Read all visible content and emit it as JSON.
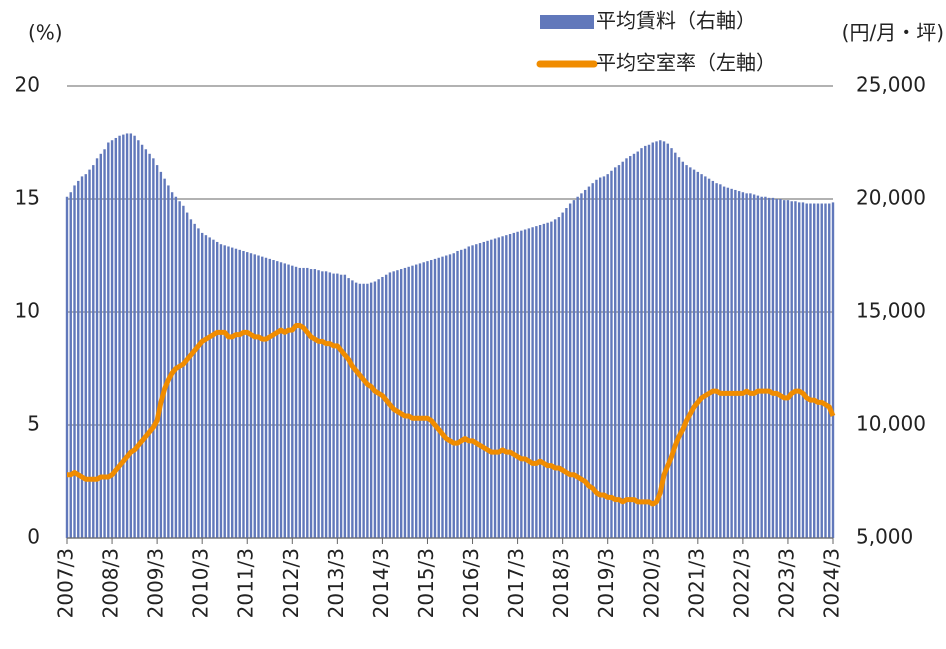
{
  "chart_data": {
    "type": "combo",
    "legend": "top",
    "y_unit_label": "(%)",
    "y2_unit_label": "(円/月・坪)",
    "categories": [
      "2007/3",
      null,
      null,
      null,
      null,
      null,
      null,
      null,
      null,
      null,
      null,
      null,
      "2008/3",
      null,
      null,
      null,
      null,
      null,
      null,
      null,
      null,
      null,
      null,
      null,
      "2009/3",
      null,
      null,
      null,
      null,
      null,
      null,
      null,
      null,
      null,
      null,
      null,
      "2010/3",
      null,
      null,
      null,
      null,
      null,
      null,
      null,
      null,
      null,
      null,
      null,
      "2011/3",
      null,
      null,
      null,
      null,
      null,
      null,
      null,
      null,
      null,
      null,
      null,
      "2012/3",
      null,
      null,
      null,
      null,
      null,
      null,
      null,
      null,
      null,
      null,
      null,
      "2013/3",
      null,
      null,
      null,
      null,
      null,
      null,
      null,
      null,
      null,
      null,
      null,
      "2014/3",
      null,
      null,
      null,
      null,
      null,
      null,
      null,
      null,
      null,
      null,
      null,
      "2015/3",
      null,
      null,
      null,
      null,
      null,
      null,
      null,
      null,
      null,
      null,
      null,
      "2016/3",
      null,
      null,
      null,
      null,
      null,
      null,
      null,
      null,
      null,
      null,
      null,
      "2017/3",
      null,
      null,
      null,
      null,
      null,
      null,
      null,
      null,
      null,
      null,
      null,
      "2018/3",
      null,
      null,
      null,
      null,
      null,
      null,
      null,
      null,
      null,
      null,
      null,
      "2019/3",
      null,
      null,
      null,
      null,
      null,
      null,
      null,
      null,
      null,
      null,
      null,
      "2020/3",
      null,
      null,
      null,
      null,
      null,
      null,
      null,
      null,
      null,
      null,
      null,
      "2021/3",
      null,
      null,
      null,
      null,
      null,
      null,
      null,
      null,
      null,
      null,
      null,
      "2022/3",
      null,
      null,
      null,
      null,
      null,
      null,
      null,
      null,
      null,
      null,
      null,
      "2023/3",
      null,
      null,
      null,
      null,
      null,
      null,
      null,
      null,
      null,
      null,
      null,
      "2024/3"
    ],
    "series": [
      {
        "name": "平均賃料（右軸）",
        "type": "bar",
        "axis": "y2",
        "color": "#6178bb",
        "values": [
          20100,
          20300,
          20600,
          20800,
          21000,
          21100,
          21300,
          21500,
          21800,
          22000,
          22200,
          22500,
          22600,
          22700,
          22800,
          22850,
          22900,
          22900,
          22800,
          22600,
          22400,
          22200,
          22000,
          21800,
          21500,
          21200,
          20900,
          20600,
          20300,
          20100,
          19900,
          19700,
          19400,
          19100,
          18900,
          18700,
          18500,
          18400,
          18300,
          18200,
          18100,
          18000,
          17950,
          17900,
          17850,
          17800,
          17750,
          17700,
          17650,
          17600,
          17550,
          17500,
          17450,
          17400,
          17350,
          17300,
          17250,
          17200,
          17150,
          17100,
          17050,
          17000,
          16950,
          16950,
          16950,
          16900,
          16900,
          16850,
          16800,
          16800,
          16750,
          16700,
          16700,
          16650,
          16650,
          16500,
          16400,
          16300,
          16250,
          16250,
          16250,
          16300,
          16350,
          16450,
          16550,
          16650,
          16750,
          16800,
          16850,
          16900,
          16950,
          17000,
          17050,
          17100,
          17150,
          17200,
          17250,
          17300,
          17350,
          17400,
          17450,
          17500,
          17550,
          17600,
          17700,
          17750,
          17800,
          17900,
          17950,
          18000,
          18050,
          18100,
          18150,
          18200,
          18250,
          18300,
          18350,
          18400,
          18450,
          18500,
          18550,
          18600,
          18650,
          18700,
          18750,
          18800,
          18850,
          18900,
          18950,
          19000,
          19100,
          19200,
          19400,
          19600,
          19800,
          19950,
          20100,
          20250,
          20400,
          20550,
          20700,
          20850,
          20950,
          21000,
          21100,
          21250,
          21400,
          21500,
          21650,
          21800,
          21900,
          22000,
          22100,
          22250,
          22350,
          22400,
          22500,
          22550,
          22600,
          22550,
          22450,
          22250,
          22050,
          21850,
          21650,
          21500,
          21400,
          21300,
          21200,
          21100,
          21000,
          20900,
          20800,
          20700,
          20650,
          20550,
          20500,
          20450,
          20400,
          20350,
          20300,
          20250,
          20250,
          20200,
          20150,
          20100,
          20100,
          20050,
          20050,
          20000,
          20000,
          19950,
          19950,
          19900,
          19900,
          19850,
          19850,
          19800,
          19800,
          19800,
          19800,
          19800,
          19800,
          19800,
          19850
        ]
      },
      {
        "name": "平均空室率（左軸）",
        "type": "line",
        "axis": "y",
        "color": "#f08c00",
        "values": [
          2.8,
          2.8,
          2.9,
          2.8,
          2.7,
          2.6,
          2.6,
          2.6,
          2.6,
          2.7,
          2.7,
          2.7,
          2.8,
          3.0,
          3.2,
          3.4,
          3.6,
          3.8,
          3.9,
          4.1,
          4.3,
          4.5,
          4.7,
          4.9,
          5.2,
          6.0,
          6.6,
          7.0,
          7.3,
          7.5,
          7.6,
          7.7,
          7.9,
          8.1,
          8.3,
          8.5,
          8.7,
          8.8,
          8.9,
          9.0,
          9.1,
          9.1,
          9.1,
          8.9,
          8.9,
          9.0,
          9.0,
          9.1,
          9.1,
          9.0,
          8.9,
          8.9,
          8.8,
          8.8,
          8.9,
          9.0,
          9.1,
          9.2,
          9.1,
          9.2,
          9.2,
          9.4,
          9.4,
          9.3,
          9.1,
          8.9,
          8.8,
          8.7,
          8.7,
          8.6,
          8.6,
          8.5,
          8.5,
          8.3,
          8.1,
          7.9,
          7.6,
          7.4,
          7.2,
          7.0,
          6.8,
          6.7,
          6.5,
          6.4,
          6.3,
          6.1,
          5.9,
          5.7,
          5.6,
          5.5,
          5.4,
          5.4,
          5.3,
          5.3,
          5.3,
          5.3,
          5.3,
          5.2,
          5.0,
          4.8,
          4.6,
          4.4,
          4.3,
          4.2,
          4.2,
          4.3,
          4.4,
          4.3,
          4.3,
          4.2,
          4.1,
          4.0,
          3.9,
          3.8,
          3.8,
          3.8,
          3.9,
          3.8,
          3.8,
          3.7,
          3.6,
          3.5,
          3.5,
          3.4,
          3.3,
          3.3,
          3.4,
          3.3,
          3.2,
          3.2,
          3.1,
          3.1,
          3.0,
          2.9,
          2.8,
          2.8,
          2.7,
          2.6,
          2.5,
          2.3,
          2.2,
          2.0,
          1.9,
          1.9,
          1.8,
          1.8,
          1.7,
          1.7,
          1.6,
          1.7,
          1.7,
          1.7,
          1.6,
          1.6,
          1.6,
          1.6,
          1.5,
          1.6,
          2.0,
          2.8,
          3.2,
          3.6,
          4.1,
          4.5,
          4.8,
          5.2,
          5.5,
          5.8,
          6.0,
          6.2,
          6.3,
          6.4,
          6.5,
          6.5,
          6.4,
          6.4,
          6.4,
          6.4,
          6.4,
          6.4,
          6.4,
          6.5,
          6.4,
          6.4,
          6.5,
          6.5,
          6.5,
          6.5,
          6.4,
          6.4,
          6.3,
          6.2,
          6.2,
          6.4,
          6.5,
          6.5,
          6.4,
          6.2,
          6.1,
          6.1,
          6.0,
          6.0,
          5.9,
          5.8,
          5.4
        ]
      }
    ],
    "ylim": [
      0,
      20
    ],
    "yticks": [
      0,
      5,
      10,
      15,
      20
    ],
    "y2lim": [
      5000,
      25000
    ],
    "y2ticks": [
      {
        "value": 5000,
        "label": "5,000"
      },
      {
        "value": 10000,
        "label": "10,000"
      },
      {
        "value": 15000,
        "label": "15,000"
      },
      {
        "value": 20000,
        "label": "20,000"
      },
      {
        "value": 25000,
        "label": "25,000"
      }
    ],
    "grid": true
  }
}
